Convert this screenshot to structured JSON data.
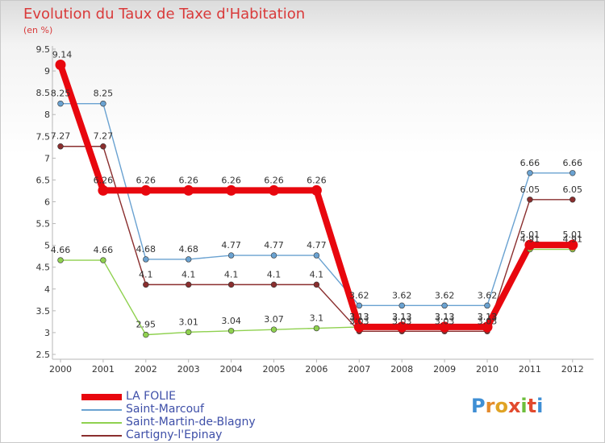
{
  "header": {
    "title": "Evolution du Taux de Taxe d'Habitation",
    "subtitle": "(en %)"
  },
  "brand": {
    "letters": [
      "P",
      "r",
      "o",
      "x",
      "i",
      "t",
      "i"
    ]
  },
  "chart_data": {
    "type": "line",
    "title": "Evolution du Taux de Taxe d'Habitation",
    "ylabel": "(en %)",
    "xlabel": "",
    "x": [
      "2000",
      "2001",
      "2002",
      "2003",
      "2004",
      "2005",
      "2006",
      "2007",
      "2008",
      "2009",
      "2010",
      "2011",
      "2012"
    ],
    "ylim": [
      2.5,
      9.5
    ],
    "yticks": [
      2.5,
      3,
      3.5,
      4,
      4.5,
      5,
      5.5,
      6,
      6.5,
      7,
      7.5,
      8,
      8.5,
      9,
      9.5
    ],
    "grid": false,
    "legend_position": "bottom-left",
    "series": [
      {
        "name": "LA FOLIE",
        "color": "#e8070e",
        "values": [
          9.14,
          6.26,
          6.26,
          6.26,
          6.26,
          6.26,
          6.26,
          3.13,
          3.13,
          3.13,
          3.13,
          5.01,
          5.01
        ],
        "labels": [
          "9.14",
          "6.26",
          "6.26",
          "6.26",
          "6.26",
          "6.26",
          "6.26",
          "3.13",
          "3.13",
          "3.13",
          "3.13",
          "5.01",
          "5.01"
        ]
      },
      {
        "name": "Saint-Marcouf",
        "color": "#6aa2d1",
        "values": [
          8.25,
          8.25,
          4.68,
          4.68,
          4.77,
          4.77,
          4.77,
          3.62,
          3.62,
          3.62,
          3.62,
          6.66,
          6.66
        ],
        "labels": [
          "8.25",
          "8.25",
          "4.68",
          "4.68",
          "4.77",
          "4.77",
          "4.77",
          "3.62",
          "3.62",
          "3.62",
          "3.62",
          "6.66",
          "6.66"
        ]
      },
      {
        "name": "Saint-Martin-de-Blagny",
        "color": "#8fd14f",
        "values": [
          4.66,
          4.66,
          2.95,
          3.01,
          3.04,
          3.07,
          3.1,
          3.13,
          3.13,
          3.13,
          3.13,
          4.91,
          4.91
        ],
        "labels": [
          "4.66",
          "4.66",
          "2.95",
          "3.01",
          "3.04",
          "3.07",
          "3.1",
          "3.13",
          "3.13",
          "3.13",
          "3.13",
          "4.91",
          "4.91"
        ]
      },
      {
        "name": "Cartigny-l'Epinay",
        "color": "#8a2e2e",
        "values": [
          7.27,
          7.27,
          4.1,
          4.1,
          4.1,
          4.1,
          4.1,
          3.03,
          3.03,
          3.03,
          3.03,
          6.05,
          6.05
        ],
        "labels": [
          "7.27",
          "7.27",
          "4.1",
          "4.1",
          "4.1",
          "4.1",
          "4.1",
          "3.03",
          "3.03",
          "3.03",
          "3.03",
          "6.05",
          "6.05"
        ]
      }
    ]
  }
}
